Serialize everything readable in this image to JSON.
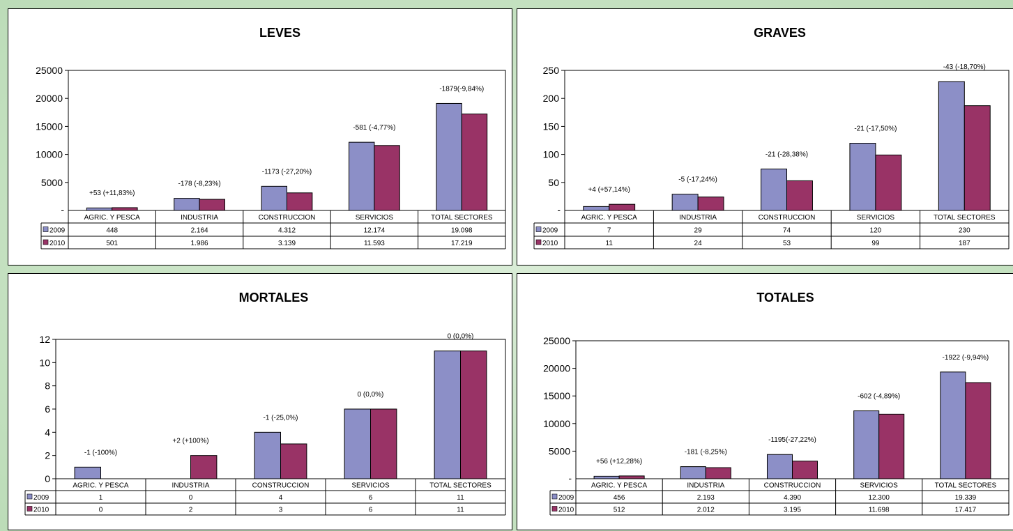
{
  "colors": {
    "s2009": "#8c8fc7",
    "s2010": "#993366"
  },
  "chart_data": [
    {
      "type": "bar",
      "title": "LEVES",
      "categories": [
        "AGRIC. Y PESCA",
        "INDUSTRIA",
        "CONSTRUCCION",
        "SERVICIOS",
        "TOTAL SECTORES"
      ],
      "series": [
        {
          "name": "2009",
          "values": [
            448,
            2164,
            4312,
            12174,
            19098
          ],
          "labels": [
            "448",
            "2.164",
            "4.312",
            "12.174",
            "19.098"
          ]
        },
        {
          "name": "2010",
          "values": [
            501,
            1986,
            3139,
            11593,
            17219
          ],
          "labels": [
            "501",
            "1.986",
            "3.139",
            "11.593",
            "17.219"
          ]
        }
      ],
      "annotations": [
        "+53 (+11,83%)",
        "-178 (-8,23%)",
        "-1173 (-27,20%)",
        "-581 (-4,77%)",
        "-1879(-9,84%)"
      ],
      "ylim": [
        0,
        25000
      ],
      "yticks": [
        5000,
        10000,
        15000,
        20000,
        25000
      ],
      "ytick_labels": [
        "5000",
        "10000",
        "15000",
        "20000",
        "25000"
      ],
      "zero_label": "-"
    },
    {
      "type": "bar",
      "title": "GRAVES",
      "categories": [
        "AGRIC. Y PESCA",
        "INDUSTRIA",
        "CONSTRUCCION",
        "SERVICIOS",
        "TOTAL SECTORES"
      ],
      "series": [
        {
          "name": "2009",
          "values": [
            7,
            29,
            74,
            120,
            230
          ],
          "labels": [
            "7",
            "29",
            "74",
            "120",
            "230"
          ]
        },
        {
          "name": "2010",
          "values": [
            11,
            24,
            53,
            99,
            187
          ],
          "labels": [
            "11",
            "24",
            "53",
            "99",
            "187"
          ]
        }
      ],
      "annotations": [
        "+4 (+57,14%)",
        "-5 (-17,24%)",
        "-21 (-28,38%)",
        "-21 (-17,50%)",
        "-43 (-18,70%)"
      ],
      "ylim": [
        0,
        250
      ],
      "yticks": [
        50,
        100,
        150,
        200,
        250
      ],
      "ytick_labels": [
        "50",
        "100",
        "150",
        "200",
        "250"
      ],
      "zero_label": "-"
    },
    {
      "type": "bar",
      "title": "MORTALES",
      "categories": [
        "AGRIC. Y PESCA",
        "INDUSTRIA",
        "CONSTRUCCION",
        "SERVICIOS",
        "TOTAL SECTORES"
      ],
      "series": [
        {
          "name": "2009",
          "values": [
            1,
            0,
            4,
            6,
            11
          ],
          "labels": [
            "1",
            "0",
            "4",
            "6",
            "11"
          ]
        },
        {
          "name": "2010",
          "values": [
            0,
            2,
            3,
            6,
            11
          ],
          "labels": [
            "0",
            "2",
            "3",
            "6",
            "11"
          ]
        }
      ],
      "annotations": [
        "-1  (-100%)",
        "+2 (+100%)",
        "-1 (-25,0%)",
        "0 (0,0%)",
        "0 (0,0%)"
      ],
      "ylim": [
        0,
        12
      ],
      "yticks": [
        0,
        2,
        4,
        6,
        8,
        10,
        12
      ],
      "ytick_labels": [
        "0",
        "2",
        "4",
        "6",
        "8",
        "10",
        "12"
      ],
      "zero_label": ""
    },
    {
      "type": "bar",
      "title": "TOTALES",
      "categories": [
        "AGRIC. Y PESCA",
        "INDUSTRIA",
        "CONSTRUCCION",
        "SERVICIOS",
        "TOTAL SECTORES"
      ],
      "series": [
        {
          "name": "2009",
          "values": [
            456,
            2193,
            4390,
            12300,
            19339
          ],
          "labels": [
            "456",
            "2.193",
            "4.390",
            "12.300",
            "19.339"
          ]
        },
        {
          "name": "2010",
          "values": [
            512,
            2012,
            3195,
            11698,
            17417
          ],
          "labels": [
            "512",
            "2.012",
            "3.195",
            "11.698",
            "17.417"
          ]
        }
      ],
      "annotations": [
        "+56 (+12,28%)",
        "-181 (-8,25%)",
        "-1195(-27,22%)",
        "-602 (-4,89%)",
        "-1922 (-9,94%)"
      ],
      "ylim": [
        0,
        25000
      ],
      "yticks": [
        5000,
        10000,
        15000,
        20000,
        25000
      ],
      "ytick_labels": [
        "5000",
        "10000",
        "15000",
        "20000",
        "25000"
      ],
      "zero_label": "-"
    }
  ]
}
